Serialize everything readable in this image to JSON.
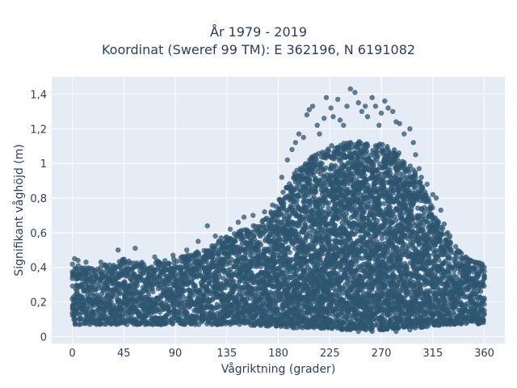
{
  "chart_data": {
    "type": "scatter",
    "title": "År 1979 - 2019",
    "subtitle": "Koordinat (Sweref 99 TM): E 362196, N 6191082",
    "xlabel": "Vågriktning (grader)",
    "ylabel": "Signifikant våghöjd (m)",
    "xlim": [
      -18,
      378
    ],
    "ylim": [
      -0.04,
      1.5
    ],
    "xticks": [
      0,
      45,
      90,
      135,
      180,
      225,
      270,
      315,
      360
    ],
    "xtick_labels": [
      "0",
      "45",
      "90",
      "135",
      "180",
      "225",
      "270",
      "315",
      "360"
    ],
    "yticks": [
      0,
      0.2,
      0.4,
      0.6,
      0.8,
      1.0,
      1.2,
      1.4
    ],
    "ytick_labels": [
      "0",
      "0,2",
      "0,4",
      "0,6",
      "0,8",
      "1",
      "1,2",
      "1,4"
    ],
    "grid": true,
    "colors": {
      "marker": "#2e5670",
      "plot_bg": "#e5ecf6",
      "grid": "#ffffff",
      "text": "#2a3f5f"
    },
    "envelope": {
      "x": [
        0,
        10,
        20,
        30,
        40,
        45,
        60,
        75,
        90,
        105,
        120,
        135,
        150,
        165,
        180,
        195,
        210,
        225,
        240,
        255,
        270,
        285,
        300,
        315,
        330,
        345,
        360
      ],
      "min": [
        0.07,
        0.07,
        0.07,
        0.07,
        0.07,
        0.07,
        0.07,
        0.07,
        0.07,
        0.07,
        0.07,
        0.07,
        0.07,
        0.06,
        0.06,
        0.05,
        0.05,
        0.04,
        0.04,
        0.04,
        0.04,
        0.05,
        0.05,
        0.06,
        0.07,
        0.07,
        0.07
      ],
      "max": [
        0.42,
        0.4,
        0.4,
        0.42,
        0.45,
        0.46,
        0.43,
        0.44,
        0.45,
        0.48,
        0.52,
        0.58,
        0.62,
        0.66,
        0.78,
        0.95,
        1.05,
        1.1,
        1.12,
        1.13,
        1.12,
        1.08,
        0.95,
        0.75,
        0.55,
        0.45,
        0.42
      ]
    },
    "outliers": [
      [
        2,
        0.45
      ],
      [
        5,
        0.44
      ],
      [
        12,
        0.43
      ],
      [
        25,
        0.43
      ],
      [
        40,
        0.5
      ],
      [
        55,
        0.51
      ],
      [
        72,
        0.46
      ],
      [
        88,
        0.47
      ],
      [
        100,
        0.5
      ],
      [
        110,
        0.55
      ],
      [
        118,
        0.64
      ],
      [
        125,
        0.58
      ],
      [
        130,
        0.57
      ],
      [
        138,
        0.62
      ],
      [
        145,
        0.66
      ],
      [
        150,
        0.69
      ],
      [
        158,
        0.7
      ],
      [
        168,
        0.72
      ],
      [
        175,
        0.76
      ],
      [
        183,
        0.92
      ],
      [
        188,
        1.02
      ],
      [
        192,
        1.08
      ],
      [
        195,
        1.12
      ],
      [
        198,
        1.17
      ],
      [
        202,
        1.15
      ],
      [
        205,
        1.28
      ],
      [
        207,
        1.31
      ],
      [
        210,
        1.33
      ],
      [
        214,
        1.22
      ],
      [
        216,
        1.17
      ],
      [
        220,
        1.26
      ],
      [
        222,
        1.38
      ],
      [
        226,
        1.32
      ],
      [
        228,
        1.27
      ],
      [
        232,
        1.37
      ],
      [
        234,
        1.25
      ],
      [
        237,
        1.22
      ],
      [
        240,
        1.33
      ],
      [
        243,
        1.43
      ],
      [
        247,
        1.41
      ],
      [
        250,
        1.35
      ],
      [
        253,
        1.3
      ],
      [
        256,
        1.33
      ],
      [
        258,
        1.27
      ],
      [
        262,
        1.38
      ],
      [
        265,
        1.33
      ],
      [
        268,
        1.22
      ],
      [
        270,
        1.29
      ],
      [
        273,
        1.36
      ],
      [
        276,
        1.32
      ],
      [
        280,
        1.3
      ],
      [
        283,
        1.24
      ],
      [
        286,
        1.23
      ],
      [
        290,
        1.17
      ],
      [
        295,
        1.2
      ],
      [
        298,
        1.12
      ],
      [
        300,
        1.05
      ],
      [
        303,
        0.97
      ],
      [
        305,
        0.92
      ],
      [
        310,
        0.88
      ],
      [
        315,
        0.82
      ],
      [
        318,
        0.8
      ],
      [
        322,
        0.73
      ],
      [
        325,
        0.65
      ],
      [
        328,
        0.6
      ],
      [
        330,
        0.58
      ],
      [
        335,
        0.52
      ],
      [
        340,
        0.48
      ],
      [
        344,
        0.46
      ],
      [
        348,
        0.44
      ],
      [
        352,
        0.43
      ],
      [
        355,
        0.42
      ],
      [
        358,
        0.42
      ]
    ],
    "low_outliers": [
      [
        240,
        0.04
      ],
      [
        250,
        0.03
      ],
      [
        262,
        0.03
      ],
      [
        272,
        0.04
      ],
      [
        283,
        0.03
      ],
      [
        285,
        0.05
      ],
      [
        295,
        0.04
      ]
    ]
  }
}
